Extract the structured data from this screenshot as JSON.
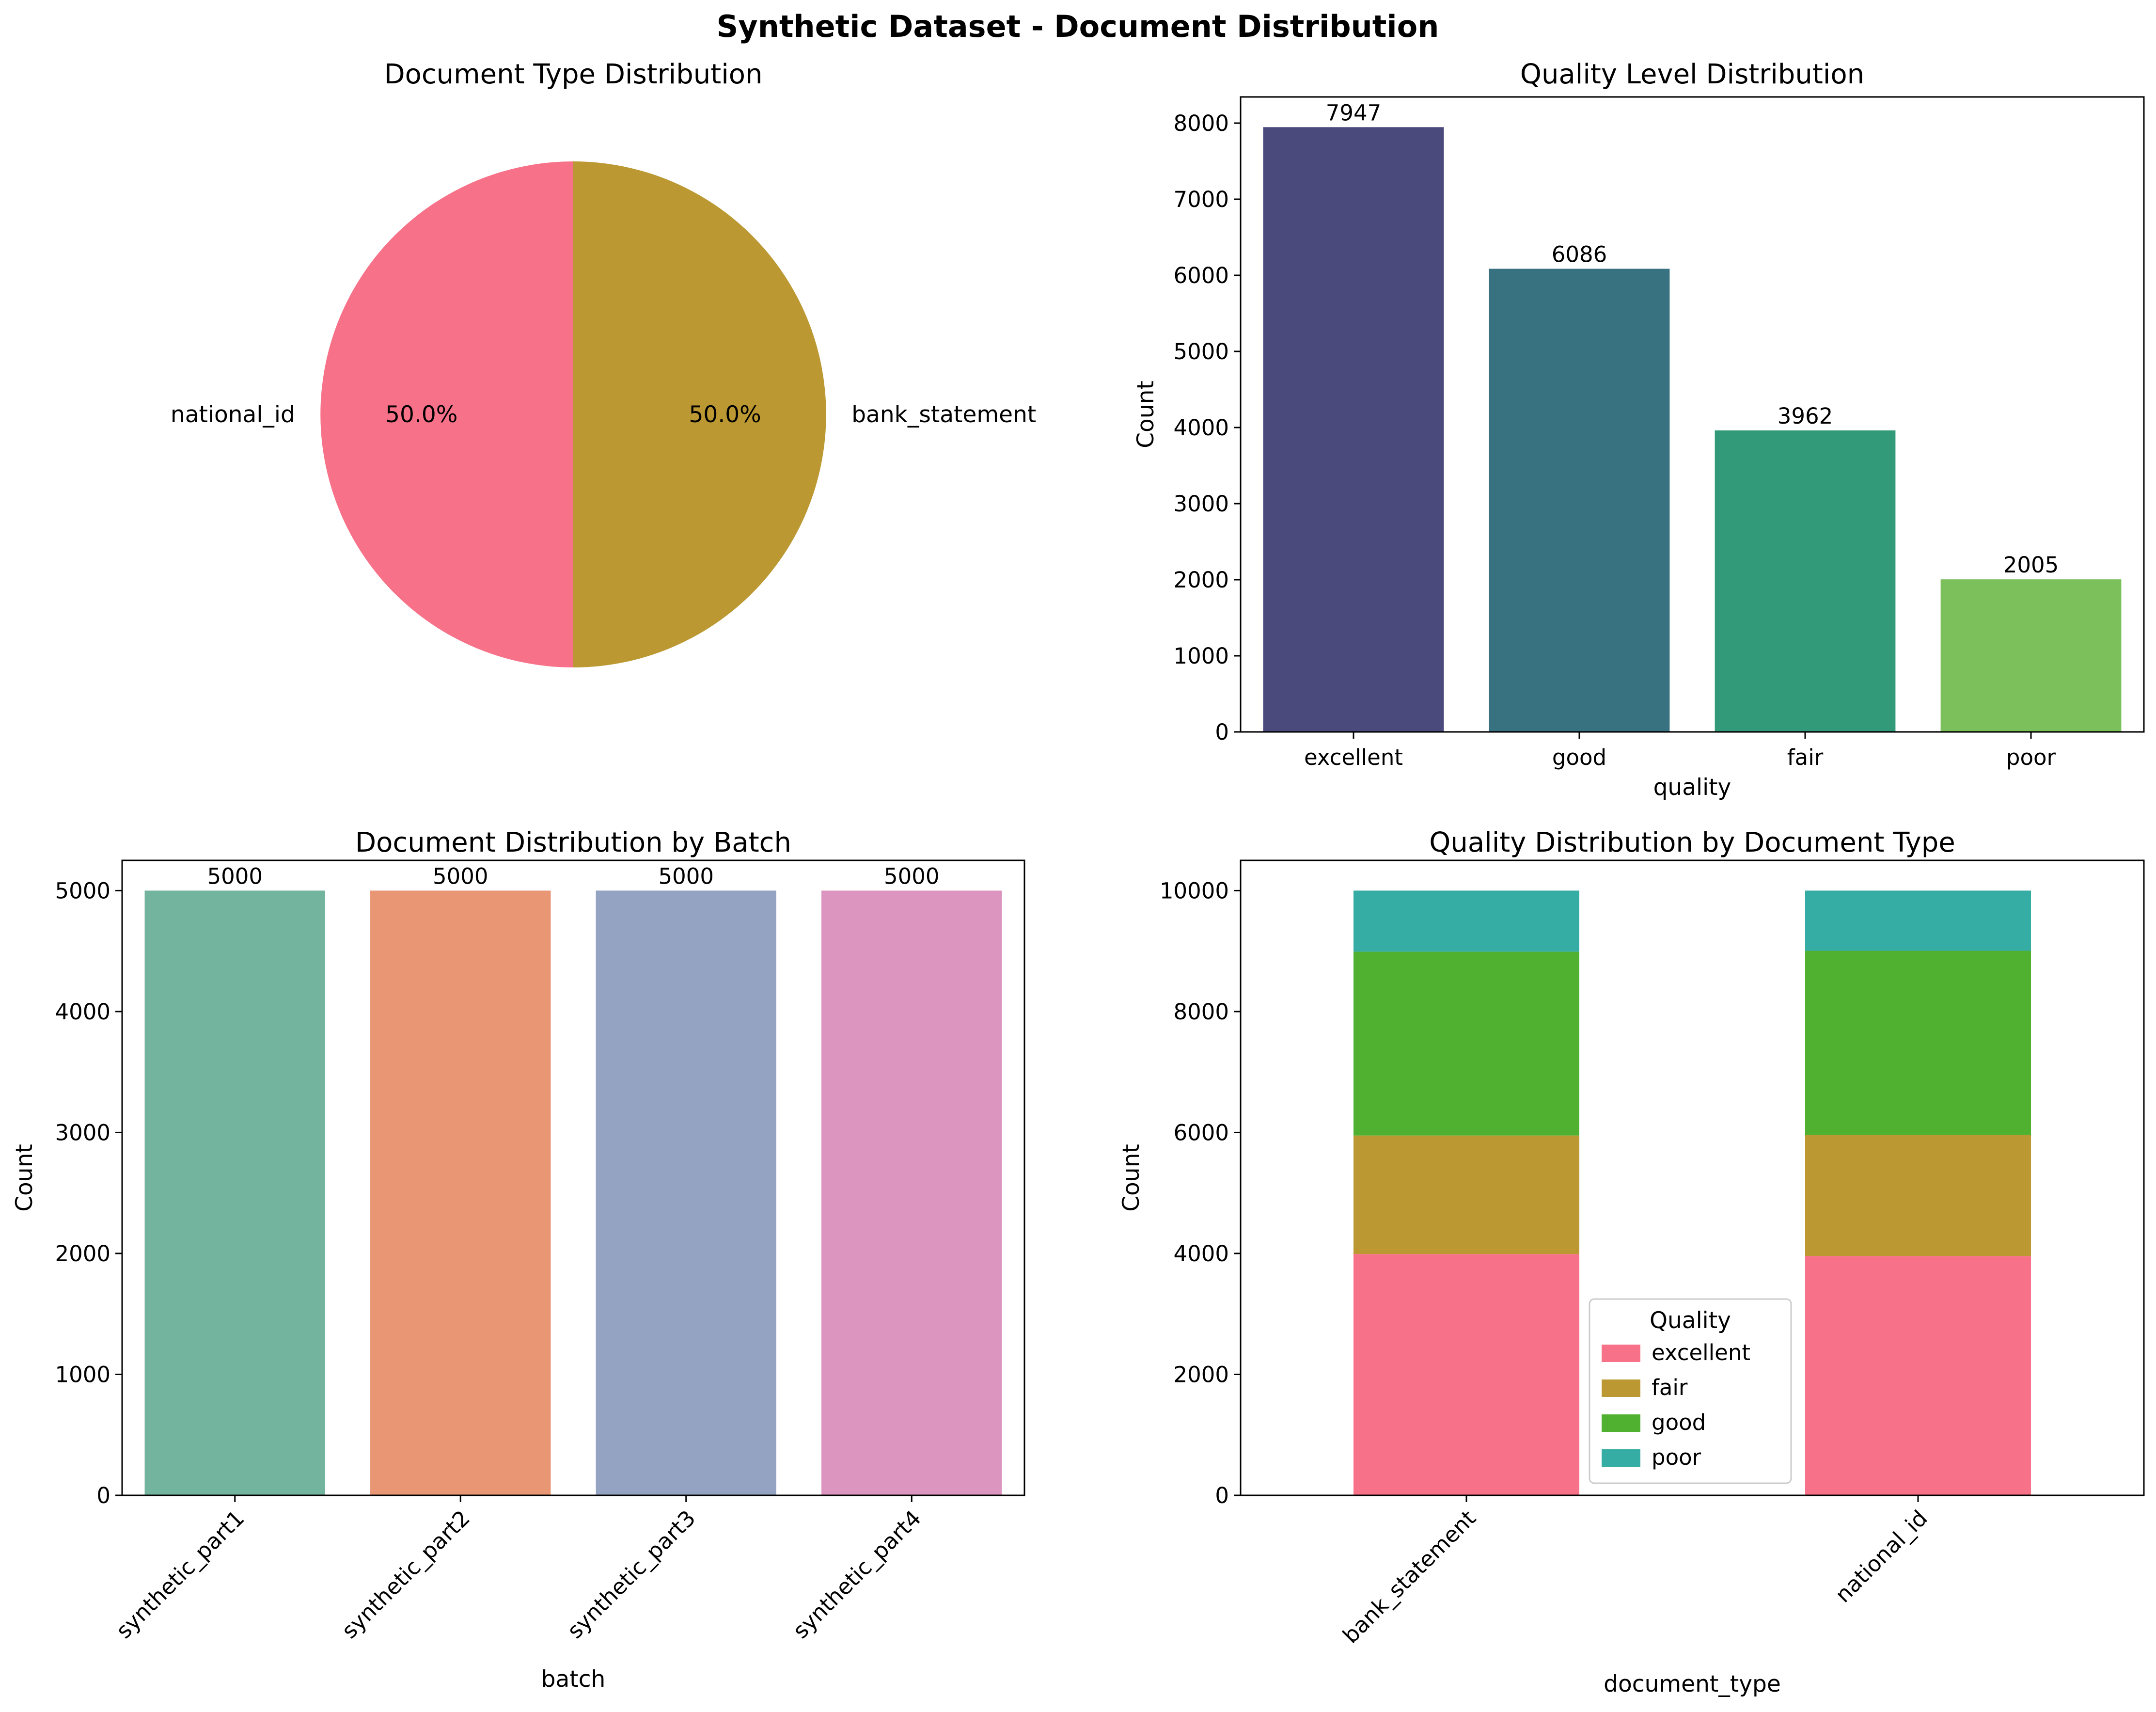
{
  "figure": {
    "title": "Synthetic Dataset - Document Distribution"
  },
  "chart_data": [
    {
      "type": "pie",
      "title": "Document Type Distribution",
      "labels": [
        "national_id",
        "bank_statement"
      ],
      "values": [
        10000,
        10000
      ],
      "percent_labels": [
        "50.0%",
        "50.0%"
      ],
      "colors": [
        "#f77189",
        "#bb9832"
      ]
    },
    {
      "type": "bar",
      "title": "Quality Level Distribution",
      "xlabel": "quality",
      "ylabel": "Count",
      "categories": [
        "excellent",
        "good",
        "fair",
        "poor"
      ],
      "values": [
        7947,
        6086,
        3962,
        2005
      ],
      "data_labels": [
        "7947",
        "6086",
        "3962",
        "2005"
      ],
      "colors": [
        "#4a4a7c",
        "#38717f",
        "#339a79",
        "#7cc05b"
      ],
      "ylim": [
        0,
        8344
      ],
      "yticks": [
        0,
        1000,
        2000,
        3000,
        4000,
        5000,
        6000,
        7000,
        8000
      ],
      "ytick_labels": [
        "0",
        "1000",
        "2000",
        "3000",
        "4000",
        "5000",
        "6000",
        "7000",
        "8000"
      ]
    },
    {
      "type": "bar",
      "title": "Document Distribution by Batch",
      "xlabel": "batch",
      "ylabel": "Count",
      "categories": [
        "synthetic_part1",
        "synthetic_part2",
        "synthetic_part3",
        "synthetic_part4"
      ],
      "values": [
        5000,
        5000,
        5000,
        5000
      ],
      "data_labels": [
        "5000",
        "5000",
        "5000",
        "5000"
      ],
      "colors": [
        "#73b49e",
        "#e99675",
        "#95a3c3",
        "#dc95bf"
      ],
      "ylim": [
        0,
        5250
      ],
      "yticks": [
        0,
        1000,
        2000,
        3000,
        4000,
        5000
      ],
      "ytick_labels": [
        "0",
        "1000",
        "2000",
        "3000",
        "4000",
        "5000"
      ]
    },
    {
      "type": "bar",
      "stacked": true,
      "title": "Quality Distribution by Document Type",
      "xlabel": "document_type",
      "ylabel": "Count",
      "categories": [
        "bank_statement",
        "national_id"
      ],
      "series": [
        {
          "name": "excellent",
          "values": [
            3990,
            3957
          ],
          "color": "#f77189"
        },
        {
          "name": "fair",
          "values": [
            1960,
            2002
          ],
          "color": "#bb9832"
        },
        {
          "name": "good",
          "values": [
            3040,
            3046
          ],
          "color": "#50b131"
        },
        {
          "name": "poor",
          "values": [
            1010,
            995
          ],
          "color": "#36ada4"
        }
      ],
      "legend_title": "Quality",
      "legend_position": "lower-center",
      "ylim": [
        0,
        10500
      ],
      "yticks": [
        0,
        2000,
        4000,
        6000,
        8000,
        10000
      ],
      "ytick_labels": [
        "0",
        "2000",
        "4000",
        "6000",
        "8000",
        "10000"
      ]
    }
  ]
}
